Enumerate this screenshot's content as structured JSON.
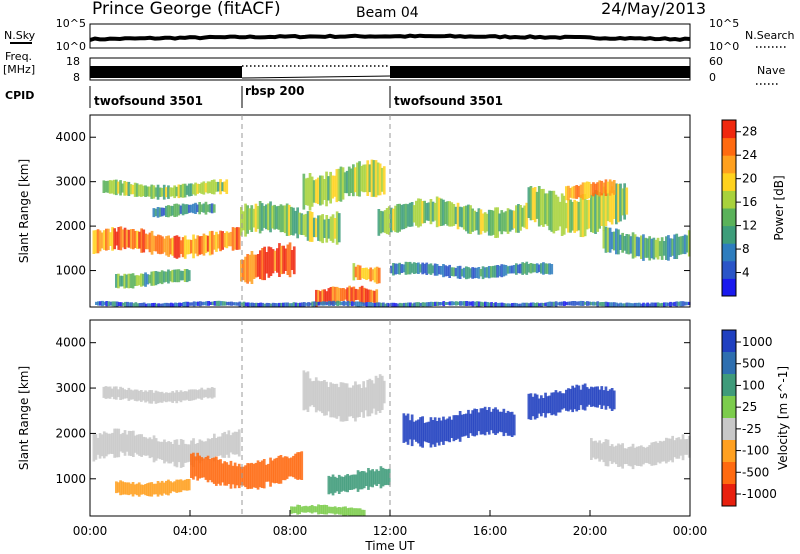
{
  "header": {
    "station": "Prince George (fitACF)",
    "beam": "Beam 04",
    "date": "24/May/2013"
  },
  "side_labels": {
    "nsky": "N.Sky",
    "freq": "Freq.",
    "freq_unit": "[MHz]",
    "cpid": "CPID",
    "nsearch": "N.Search",
    "nave": "Nave"
  },
  "noise_panel": {
    "left_ticks": [
      "10^5",
      "10^0"
    ],
    "right_ticks": [
      "10^5",
      "10^0"
    ]
  },
  "freq_panel": {
    "left_ticks": [
      "18",
      "8"
    ],
    "right_ticks": [
      "60",
      "0"
    ]
  },
  "cpid_segments": [
    {
      "label": "twofsound 3501",
      "start": 0,
      "end": 6
    },
    {
      "label": "rbsp 200",
      "start": 6,
      "end": 12
    },
    {
      "label": "twofsound 3501",
      "start": 12,
      "end": 24
    }
  ],
  "axes": {
    "ylabel": "Slant Range [km]",
    "xlabel": "Time UT",
    "y_ticks": [
      "1000",
      "2000",
      "3000",
      "4000"
    ],
    "x_ticks": [
      "00:00",
      "04:00",
      "08:00",
      "12:00",
      "16:00",
      "20:00",
      "00:00"
    ]
  },
  "chart_data": [
    {
      "type": "heatmap",
      "name": "power",
      "xlabel": "Time UT",
      "ylabel": "Slant Range [km]",
      "xlim": [
        0,
        24
      ],
      "ylim": [
        180,
        4500
      ],
      "colorbar": {
        "label": "Power [dB]",
        "ticks": [
          "28",
          "24",
          "20",
          "16",
          "12",
          "8",
          "4"
        ],
        "range": [
          0,
          30
        ],
        "colors": [
          "#1a1aee",
          "#2a55c8",
          "#2e7dbe",
          "#3d9d7a",
          "#5ab25a",
          "#a8d23c",
          "#ffd21e",
          "#ffa01e",
          "#ff6a10",
          "#f0280e"
        ]
      },
      "regions": [
        {
          "t0": 0.1,
          "t1": 6.0,
          "r0": 1350,
          "r1": 1900,
          "value": 24
        },
        {
          "t0": 0.5,
          "t1": 5.5,
          "r0": 2650,
          "r1": 3000,
          "value": 14
        },
        {
          "t0": 2.5,
          "t1": 5.0,
          "r0": 2200,
          "r1": 2500,
          "value": 10
        },
        {
          "t0": 1.0,
          "t1": 4.0,
          "r0": 650,
          "r1": 1000,
          "value": 12
        },
        {
          "t0": 6.0,
          "t1": 8.2,
          "r0": 700,
          "r1": 1500,
          "value": 26
        },
        {
          "t0": 6.0,
          "t1": 10.0,
          "r0": 1700,
          "r1": 2450,
          "value": 14
        },
        {
          "t0": 8.5,
          "t1": 11.8,
          "r0": 2500,
          "r1": 3350,
          "value": 16
        },
        {
          "t0": 9.0,
          "t1": 11.5,
          "r0": 180,
          "r1": 600,
          "value": 28
        },
        {
          "t0": 10.5,
          "t1": 11.6,
          "r0": 750,
          "r1": 1150,
          "value": 22
        },
        {
          "t0": 11.5,
          "t1": 17.5,
          "r0": 1850,
          "r1": 2550,
          "value": 14
        },
        {
          "t0": 12.0,
          "t1": 18.5,
          "r0": 850,
          "r1": 1150,
          "value": 8
        },
        {
          "t0": 17.5,
          "t1": 21.5,
          "r0": 1900,
          "r1": 2900,
          "value": 16
        },
        {
          "t0": 19.0,
          "t1": 21.0,
          "r0": 2600,
          "r1": 3000,
          "value": 22
        },
        {
          "t0": 20.5,
          "t1": 24.0,
          "r0": 1300,
          "r1": 1900,
          "value": 12
        },
        {
          "t0": 0.2,
          "t1": 24.0,
          "r0": 180,
          "r1": 300,
          "value": 6
        }
      ]
    },
    {
      "type": "heatmap",
      "name": "velocity",
      "xlabel": "Time UT",
      "ylabel": "Slant Range [km]",
      "xlim": [
        0,
        24
      ],
      "ylim": [
        180,
        4500
      ],
      "colorbar": {
        "label": "Velocity [m s^-1]",
        "ticks": [
          "1000",
          "500",
          "100",
          "25",
          "-25",
          "-100",
          "-500",
          "-1000"
        ],
        "colors": [
          "#2040c0",
          "#2e6fb0",
          "#3f9b7a",
          "#7ccc4c",
          "#c8c8c8",
          "#ffa020",
          "#ff6a10",
          "#e8200e"
        ]
      },
      "regions": [
        {
          "t0": 0.1,
          "t1": 6.0,
          "r0": 1350,
          "r1": 2000,
          "value": "-25..25"
        },
        {
          "t0": 0.5,
          "t1": 5.0,
          "r0": 2700,
          "r1": 3000,
          "value": "-25..25"
        },
        {
          "t0": 1.0,
          "t1": 4.0,
          "r0": 650,
          "r1": 1000,
          "value": "-100..-25"
        },
        {
          "t0": 4.0,
          "t1": 8.5,
          "r0": 850,
          "r1": 1500,
          "value": "-500..-100"
        },
        {
          "t0": 8.5,
          "t1": 11.8,
          "r0": 2400,
          "r1": 3300,
          "value": "-25..25"
        },
        {
          "t0": 9.5,
          "t1": 12.0,
          "r0": 700,
          "r1": 1200,
          "value": "100..500"
        },
        {
          "t0": 12.5,
          "t1": 17.0,
          "r0": 1800,
          "r1": 2500,
          "value": "500..1000"
        },
        {
          "t0": 17.5,
          "t1": 21.0,
          "r0": 2400,
          "r1": 3000,
          "value": "500..1000"
        },
        {
          "t0": 20.0,
          "t1": 24.0,
          "r0": 1300,
          "r1": 1900,
          "value": "-25..25"
        },
        {
          "t0": 8.0,
          "t1": 11.0,
          "r0": 180,
          "r1": 400,
          "value": "25..100"
        }
      ]
    }
  ]
}
